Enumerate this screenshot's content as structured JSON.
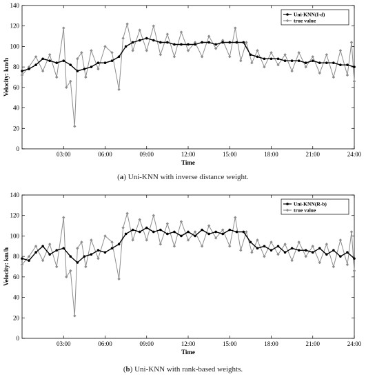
{
  "chart_data": [
    {
      "type": "line",
      "panel_label": "a",
      "caption": "Uni-KNN with inverse distance weight.",
      "xlabel": "Time",
      "ylabel": "Velocity: km/h",
      "x_tick_labels": [
        "03:00",
        "06:00",
        "09:00",
        "12:00",
        "15:00",
        "18:00",
        "21:00",
        "24:00"
      ],
      "x_tick_hours": [
        3,
        6,
        9,
        12,
        15,
        18,
        21,
        24
      ],
      "xlim_hours": [
        0,
        24
      ],
      "y_ticks": [
        0,
        20,
        40,
        60,
        80,
        100,
        120,
        140
      ],
      "ylim": [
        0,
        140
      ],
      "legend_position": "top-right",
      "series": [
        {
          "name": "Uni-KNN(I-d)",
          "color": "#000000",
          "marker": "dot",
          "x_hours": [
            0,
            0.5,
            1,
            1.5,
            2,
            2.5,
            3,
            3.5,
            4,
            4.5,
            5,
            5.5,
            6,
            6.5,
            7,
            7.5,
            8,
            8.5,
            9,
            9.5,
            10,
            10.5,
            11,
            11.5,
            12,
            12.5,
            13,
            13.5,
            14,
            14.5,
            15,
            15.5,
            16,
            16.5,
            17,
            17.5,
            18,
            18.5,
            19,
            19.5,
            20,
            20.5,
            21,
            21.5,
            22,
            22.5,
            23,
            23.5,
            24
          ],
          "values": [
            76,
            78,
            82,
            88,
            86,
            84,
            86,
            82,
            76,
            78,
            80,
            84,
            84,
            86,
            90,
            100,
            104,
            106,
            108,
            106,
            104,
            104,
            102,
            102,
            102,
            102,
            104,
            104,
            102,
            104,
            104,
            104,
            104,
            92,
            90,
            88,
            88,
            88,
            86,
            86,
            86,
            84,
            86,
            84,
            84,
            84,
            82,
            82,
            80
          ]
        },
        {
          "name": "true value",
          "color": "#8c8c8c",
          "marker": "diamond",
          "x_hours": [
            0,
            0.5,
            1,
            1.5,
            2,
            2.5,
            3,
            3.2,
            3.5,
            3.8,
            4,
            4.3,
            4.6,
            5,
            5.5,
            6,
            6.5,
            7,
            7.3,
            7.6,
            8,
            8.5,
            9,
            9.5,
            10,
            10.5,
            11,
            11.5,
            12,
            12.5,
            13,
            13.5,
            14,
            14.5,
            15,
            15.4,
            15.8,
            16.2,
            16.6,
            17,
            17.5,
            18,
            18.5,
            19,
            19.5,
            20,
            20.5,
            21,
            21.5,
            22,
            22.5,
            23,
            23.5,
            23.8,
            24
          ],
          "values": [
            72,
            80,
            90,
            76,
            92,
            70,
            118,
            60,
            66,
            22,
            88,
            94,
            70,
            96,
            78,
            100,
            94,
            58,
            108,
            122,
            96,
            116,
            96,
            120,
            92,
            112,
            90,
            114,
            96,
            104,
            90,
            110,
            98,
            106,
            90,
            118,
            86,
            104,
            84,
            96,
            80,
            94,
            82,
            92,
            76,
            94,
            80,
            90,
            74,
            92,
            70,
            96,
            72,
            104,
            66
          ]
        }
      ]
    },
    {
      "type": "line",
      "panel_label": "b",
      "caption": "Uni-KNN with rank-based weights.",
      "xlabel": "Time",
      "ylabel": "Velocity: km/h",
      "x_tick_labels": [
        "03:00",
        "06:00",
        "09:00",
        "12:00",
        "15:00",
        "18:00",
        "21:00",
        "24:00"
      ],
      "x_tick_hours": [
        3,
        6,
        9,
        12,
        15,
        18,
        21,
        24
      ],
      "xlim_hours": [
        0,
        24
      ],
      "y_ticks": [
        0,
        20,
        40,
        60,
        80,
        100,
        120,
        140
      ],
      "ylim": [
        0,
        140
      ],
      "legend_position": "top-right",
      "series": [
        {
          "name": "Uni-KNN(R-b)",
          "color": "#000000",
          "marker": "dot",
          "x_hours": [
            0,
            0.5,
            1,
            1.5,
            2,
            2.5,
            3,
            3.5,
            4,
            4.5,
            5,
            5.5,
            6,
            6.5,
            7,
            7.5,
            8,
            8.5,
            9,
            9.5,
            10,
            10.5,
            11,
            11.5,
            12,
            12.5,
            13,
            13.5,
            14,
            14.5,
            15,
            15.5,
            16,
            16.5,
            17,
            17.5,
            18,
            18.5,
            19,
            19.5,
            20,
            20.5,
            21,
            21.5,
            22,
            22.5,
            23,
            23.5,
            24
          ],
          "values": [
            78,
            76,
            84,
            90,
            82,
            86,
            88,
            80,
            74,
            80,
            82,
            86,
            84,
            88,
            92,
            102,
            106,
            104,
            108,
            104,
            106,
            102,
            104,
            100,
            104,
            100,
            106,
            102,
            104,
            102,
            106,
            104,
            104,
            94,
            88,
            90,
            86,
            90,
            84,
            88,
            86,
            86,
            84,
            88,
            82,
            86,
            80,
            84,
            78
          ]
        },
        {
          "name": "true value",
          "color": "#8c8c8c",
          "marker": "diamond",
          "x_hours": [
            0,
            0.5,
            1,
            1.5,
            2,
            2.5,
            3,
            3.2,
            3.5,
            3.8,
            4,
            4.3,
            4.6,
            5,
            5.5,
            6,
            6.5,
            7,
            7.3,
            7.6,
            8,
            8.5,
            9,
            9.5,
            10,
            10.5,
            11,
            11.5,
            12,
            12.5,
            13,
            13.5,
            14,
            14.5,
            15,
            15.4,
            15.8,
            16.2,
            16.6,
            17,
            17.5,
            18,
            18.5,
            19,
            19.5,
            20,
            20.5,
            21,
            21.5,
            22,
            22.5,
            23,
            23.5,
            23.8,
            24
          ],
          "values": [
            72,
            80,
            90,
            76,
            92,
            70,
            118,
            60,
            66,
            22,
            88,
            94,
            70,
            96,
            78,
            100,
            94,
            58,
            108,
            122,
            96,
            116,
            96,
            120,
            92,
            112,
            90,
            114,
            96,
            104,
            90,
            110,
            98,
            106,
            90,
            118,
            86,
            104,
            84,
            96,
            80,
            94,
            82,
            92,
            76,
            94,
            80,
            90,
            74,
            92,
            70,
            96,
            72,
            104,
            66
          ]
        }
      ]
    }
  ]
}
